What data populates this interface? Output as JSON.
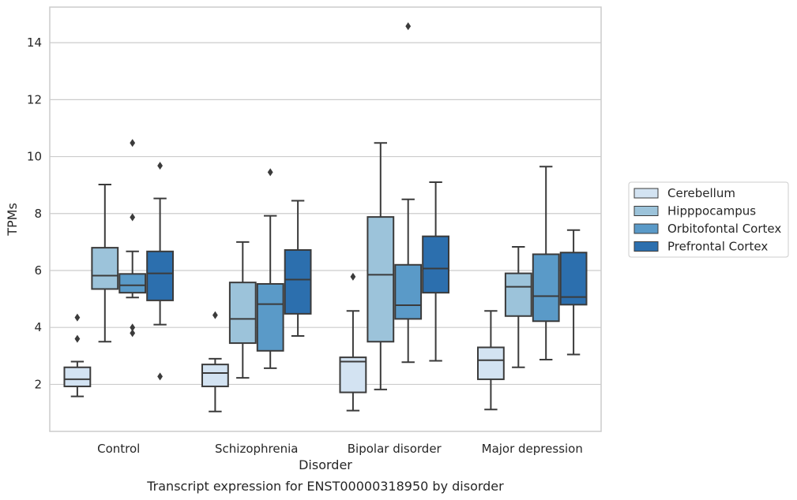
{
  "chart_data": {
    "type": "box",
    "categories": [
      "Control",
      "Schizophrenia",
      "Bipolar disorder",
      "Major depression"
    ],
    "xlabel": "Disorder",
    "ylabel": "TPMs",
    "caption": "Transcript expression for ENST00000318950 by disorder",
    "ylim": [
      0.35,
      15.25
    ],
    "yticks": [
      2,
      4,
      6,
      8,
      10,
      12,
      14
    ],
    "grid": "horizontal",
    "legend_position": "right",
    "series": [
      {
        "name": "Cerebellum",
        "color": "#d3e3f2",
        "boxes": [
          {
            "whisker_low": 1.58,
            "q1": 1.93,
            "median": 2.18,
            "q3": 2.6,
            "whisker_high": 2.8,
            "outliers": [
              3.6,
              4.35
            ]
          },
          {
            "whisker_low": 1.05,
            "q1": 1.93,
            "median": 2.4,
            "q3": 2.7,
            "whisker_high": 2.9,
            "outliers": [
              4.43
            ]
          },
          {
            "whisker_low": 1.08,
            "q1": 1.72,
            "median": 2.8,
            "q3": 2.95,
            "whisker_high": 4.58,
            "outliers": [
              5.78
            ]
          },
          {
            "whisker_low": 1.12,
            "q1": 2.18,
            "median": 2.85,
            "q3": 3.3,
            "whisker_high": 4.58,
            "outliers": []
          }
        ]
      },
      {
        "name": "Hipppocampus",
        "color": "#9cc3da",
        "boxes": [
          {
            "whisker_low": 3.5,
            "q1": 5.35,
            "median": 5.82,
            "q3": 6.8,
            "whisker_high": 9.02,
            "outliers": []
          },
          {
            "whisker_low": 2.23,
            "q1": 3.45,
            "median": 4.3,
            "q3": 5.58,
            "whisker_high": 7.0,
            "outliers": []
          },
          {
            "whisker_low": 1.82,
            "q1": 3.5,
            "median": 5.85,
            "q3": 7.88,
            "whisker_high": 10.48,
            "outliers": []
          },
          {
            "whisker_low": 2.6,
            "q1": 4.4,
            "median": 5.43,
            "q3": 5.9,
            "whisker_high": 6.83,
            "outliers": []
          }
        ]
      },
      {
        "name": "Orbitofontal Cortex",
        "color": "#5a9ac8",
        "boxes": [
          {
            "whisker_low": 5.05,
            "q1": 5.22,
            "median": 5.48,
            "q3": 5.88,
            "whisker_high": 6.67,
            "outliers": [
              3.8,
              4.0,
              7.87,
              10.48
            ]
          },
          {
            "whisker_low": 2.57,
            "q1": 3.18,
            "median": 4.82,
            "q3": 5.53,
            "whisker_high": 7.92,
            "outliers": [
              9.45
            ]
          },
          {
            "whisker_low": 2.78,
            "q1": 4.3,
            "median": 4.78,
            "q3": 6.2,
            "whisker_high": 8.5,
            "outliers": [
              14.58
            ]
          },
          {
            "whisker_low": 2.87,
            "q1": 4.22,
            "median": 5.1,
            "q3": 6.57,
            "whisker_high": 9.65,
            "outliers": []
          }
        ]
      },
      {
        "name": "Prefrontal Cortex",
        "color": "#2c6fae",
        "boxes": [
          {
            "whisker_low": 4.1,
            "q1": 4.95,
            "median": 5.9,
            "q3": 6.67,
            "whisker_high": 8.53,
            "outliers": [
              2.28,
              9.68
            ]
          },
          {
            "whisker_low": 3.7,
            "q1": 4.48,
            "median": 5.68,
            "q3": 6.72,
            "whisker_high": 8.45,
            "outliers": []
          },
          {
            "whisker_low": 2.83,
            "q1": 5.22,
            "median": 6.07,
            "q3": 7.2,
            "whisker_high": 9.1,
            "outliers": []
          },
          {
            "whisker_low": 3.05,
            "q1": 4.8,
            "median": 5.07,
            "q3": 6.63,
            "whisker_high": 7.42,
            "outliers": []
          }
        ]
      }
    ]
  }
}
